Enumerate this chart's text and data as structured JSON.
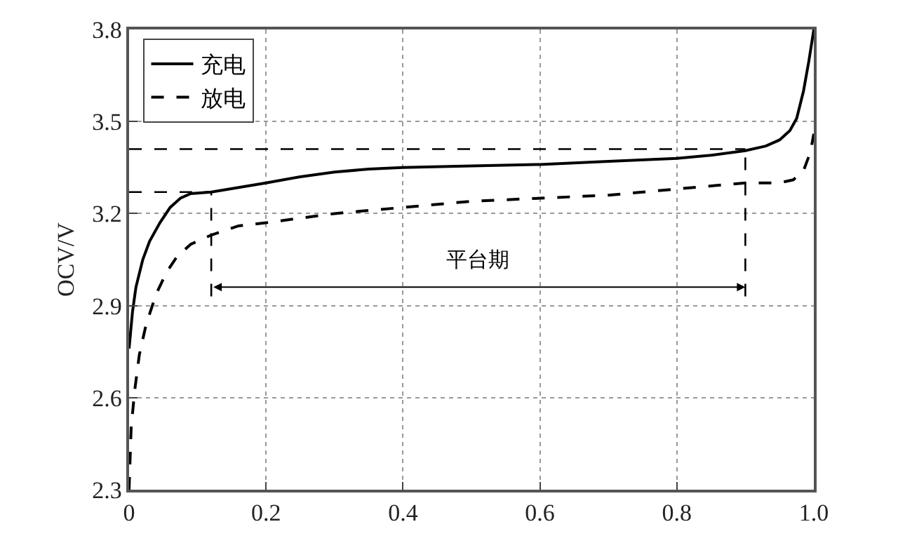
{
  "chart_data": {
    "type": "line",
    "ylabel": "OCV/V",
    "xlim": [
      0,
      1.0
    ],
    "xticks": [
      0,
      0.2,
      0.4,
      0.6,
      0.8,
      {
        "value": 1.0,
        "label": "1.0"
      }
    ],
    "ylim": [
      2.3,
      3.8
    ],
    "yticks": [
      2.3,
      2.6,
      2.9,
      3.2,
      3.5,
      3.8
    ],
    "grid": true,
    "legend": "top left",
    "series": [
      {
        "name": "充电",
        "color": "#000000",
        "line_style": "solid",
        "x": [
          0,
          0.005,
          0.01,
          0.02,
          0.03,
          0.045,
          0.06,
          0.075,
          0.09,
          0.12,
          0.16,
          0.2,
          0.25,
          0.3,
          0.35,
          0.4,
          0.5,
          0.6,
          0.7,
          0.8,
          0.85,
          0.9,
          0.93,
          0.95,
          0.965,
          0.975,
          0.985,
          0.993,
          1.0
        ],
        "values": [
          2.76,
          2.88,
          2.96,
          3.05,
          3.11,
          3.17,
          3.22,
          3.25,
          3.265,
          3.27,
          3.285,
          3.3,
          3.32,
          3.335,
          3.345,
          3.35,
          3.355,
          3.36,
          3.37,
          3.38,
          3.39,
          3.405,
          3.42,
          3.44,
          3.47,
          3.51,
          3.6,
          3.7,
          3.8
        ]
      },
      {
        "name": "放电",
        "color": "#000000",
        "line_style": "dashed",
        "x": [
          0,
          0.003,
          0.008,
          0.015,
          0.025,
          0.04,
          0.055,
          0.07,
          0.09,
          0.12,
          0.16,
          0.2,
          0.3,
          0.4,
          0.5,
          0.6,
          0.7,
          0.75,
          0.8,
          0.85,
          0.9,
          0.95,
          0.97,
          0.985,
          0.995,
          1.0
        ],
        "values": [
          2.3,
          2.5,
          2.62,
          2.74,
          2.84,
          2.94,
          3.01,
          3.06,
          3.1,
          3.13,
          3.16,
          3.17,
          3.2,
          3.22,
          3.24,
          3.25,
          3.26,
          3.27,
          3.28,
          3.29,
          3.3,
          3.3,
          3.31,
          3.34,
          3.4,
          3.46
        ]
      }
    ],
    "ref_lines": [
      {
        "axis": "y",
        "value": 3.27,
        "color": "#000000",
        "line_style": "dashed"
      },
      {
        "axis": "x",
        "value": 0.12,
        "color": "#000000",
        "line_style": "dashed"
      },
      {
        "axis": "y",
        "value": 3.41,
        "color": "#000000",
        "line_style": "dashed"
      },
      {
        "axis": "x",
        "value": 0.9,
        "color": "#000000",
        "line_style": "dashed"
      }
    ],
    "annotations": [
      "平台期"
    ]
  }
}
